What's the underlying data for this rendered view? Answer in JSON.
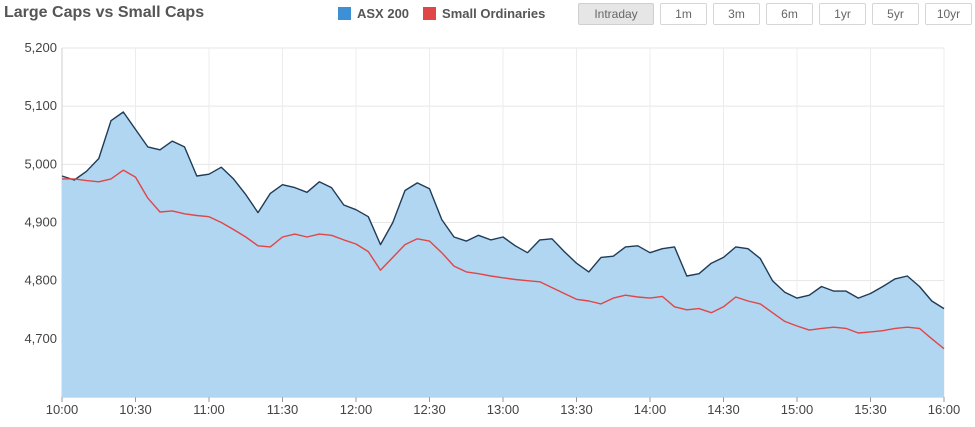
{
  "header": {
    "title": "Large Caps vs Small Caps",
    "legend": [
      {
        "label": "ASX 200",
        "color": "#3d8fd6"
      },
      {
        "label": "Small Ordinaries",
        "color": "#e04646"
      }
    ],
    "ranges": [
      "Intraday",
      "1m",
      "3m",
      "6m",
      "1yr",
      "5yr",
      "10yr"
    ],
    "active_range": "Intraday"
  },
  "chart_data": {
    "type": "area",
    "x_tick_labels": [
      "10:00",
      "10:30",
      "11:00",
      "11:30",
      "12:00",
      "12:30",
      "13:00",
      "13:30",
      "14:00",
      "14:30",
      "15:00",
      "15:30",
      "16:00"
    ],
    "y_tick_labels": [
      "5,200",
      "5,100",
      "5,000",
      "4,900",
      "4,800",
      "4,700"
    ],
    "ylim": [
      4600,
      5200
    ],
    "x_range": [
      "10:00",
      "16:00"
    ],
    "grid": true,
    "legend_position": "top",
    "series": [
      {
        "name": "ASX 200",
        "color": "#1f3b57",
        "fill": "#b1d6f1",
        "points": [
          [
            "10:00",
            4980
          ],
          [
            "10:05",
            4973
          ],
          [
            "10:10",
            4988
          ],
          [
            "10:15",
            5010
          ],
          [
            "10:20",
            5075
          ],
          [
            "10:25",
            5090
          ],
          [
            "10:30",
            5060
          ],
          [
            "10:35",
            5030
          ],
          [
            "10:40",
            5025
          ],
          [
            "10:45",
            5040
          ],
          [
            "10:50",
            5030
          ],
          [
            "10:55",
            4980
          ],
          [
            "11:00",
            4983
          ],
          [
            "11:05",
            4995
          ],
          [
            "11:10",
            4975
          ],
          [
            "11:15",
            4948
          ],
          [
            "11:20",
            4917
          ],
          [
            "11:25",
            4950
          ],
          [
            "11:30",
            4965
          ],
          [
            "11:35",
            4960
          ],
          [
            "11:40",
            4952
          ],
          [
            "11:45",
            4970
          ],
          [
            "11:50",
            4960
          ],
          [
            "11:55",
            4930
          ],
          [
            "12:00",
            4922
          ],
          [
            "12:05",
            4910
          ],
          [
            "12:10",
            4862
          ],
          [
            "12:15",
            4900
          ],
          [
            "12:20",
            4955
          ],
          [
            "12:25",
            4968
          ],
          [
            "12:30",
            4958
          ],
          [
            "12:35",
            4905
          ],
          [
            "12:40",
            4875
          ],
          [
            "12:45",
            4868
          ],
          [
            "12:50",
            4878
          ],
          [
            "12:55",
            4870
          ],
          [
            "13:00",
            4875
          ],
          [
            "13:05",
            4860
          ],
          [
            "13:10",
            4848
          ],
          [
            "13:15",
            4870
          ],
          [
            "13:20",
            4872
          ],
          [
            "13:25",
            4850
          ],
          [
            "13:30",
            4830
          ],
          [
            "13:35",
            4815
          ],
          [
            "13:40",
            4840
          ],
          [
            "13:45",
            4842
          ],
          [
            "13:50",
            4858
          ],
          [
            "13:55",
            4860
          ],
          [
            "14:00",
            4848
          ],
          [
            "14:05",
            4855
          ],
          [
            "14:10",
            4858
          ],
          [
            "14:15",
            4808
          ],
          [
            "14:20",
            4812
          ],
          [
            "14:25",
            4830
          ],
          [
            "14:30",
            4840
          ],
          [
            "14:35",
            4858
          ],
          [
            "14:40",
            4855
          ],
          [
            "14:45",
            4838
          ],
          [
            "14:50",
            4800
          ],
          [
            "14:55",
            4780
          ],
          [
            "15:00",
            4770
          ],
          [
            "15:05",
            4775
          ],
          [
            "15:10",
            4790
          ],
          [
            "15:15",
            4782
          ],
          [
            "15:20",
            4782
          ],
          [
            "15:25",
            4770
          ],
          [
            "15:30",
            4778
          ],
          [
            "15:35",
            4790
          ],
          [
            "15:40",
            4803
          ],
          [
            "15:45",
            4808
          ],
          [
            "15:50",
            4790
          ],
          [
            "15:55",
            4765
          ],
          [
            "16:00",
            4752
          ]
        ]
      },
      {
        "name": "Small Ordinaries",
        "color": "#e04646",
        "points": [
          [
            "10:00",
            4975
          ],
          [
            "10:05",
            4975
          ],
          [
            "10:10",
            4972
          ],
          [
            "10:15",
            4970
          ],
          [
            "10:20",
            4975
          ],
          [
            "10:25",
            4990
          ],
          [
            "10:30",
            4978
          ],
          [
            "10:35",
            4942
          ],
          [
            "10:40",
            4918
          ],
          [
            "10:45",
            4920
          ],
          [
            "10:50",
            4915
          ],
          [
            "10:55",
            4912
          ],
          [
            "11:00",
            4910
          ],
          [
            "11:05",
            4900
          ],
          [
            "11:10",
            4888
          ],
          [
            "11:15",
            4875
          ],
          [
            "11:20",
            4860
          ],
          [
            "11:25",
            4858
          ],
          [
            "11:30",
            4875
          ],
          [
            "11:35",
            4880
          ],
          [
            "11:40",
            4875
          ],
          [
            "11:45",
            4880
          ],
          [
            "11:50",
            4878
          ],
          [
            "11:55",
            4870
          ],
          [
            "12:00",
            4863
          ],
          [
            "12:05",
            4850
          ],
          [
            "12:10",
            4818
          ],
          [
            "12:15",
            4840
          ],
          [
            "12:20",
            4862
          ],
          [
            "12:25",
            4872
          ],
          [
            "12:30",
            4868
          ],
          [
            "12:35",
            4848
          ],
          [
            "12:40",
            4825
          ],
          [
            "12:45",
            4815
          ],
          [
            "12:50",
            4812
          ],
          [
            "12:55",
            4808
          ],
          [
            "13:00",
            4805
          ],
          [
            "13:05",
            4802
          ],
          [
            "13:10",
            4800
          ],
          [
            "13:15",
            4798
          ],
          [
            "13:20",
            4788
          ],
          [
            "13:25",
            4778
          ],
          [
            "13:30",
            4768
          ],
          [
            "13:35",
            4765
          ],
          [
            "13:40",
            4760
          ],
          [
            "13:45",
            4770
          ],
          [
            "13:50",
            4775
          ],
          [
            "13:55",
            4772
          ],
          [
            "14:00",
            4770
          ],
          [
            "14:05",
            4773
          ],
          [
            "14:10",
            4755
          ],
          [
            "14:15",
            4750
          ],
          [
            "14:20",
            4752
          ],
          [
            "14:25",
            4745
          ],
          [
            "14:30",
            4755
          ],
          [
            "14:35",
            4772
          ],
          [
            "14:40",
            4765
          ],
          [
            "14:45",
            4760
          ],
          [
            "14:50",
            4745
          ],
          [
            "14:55",
            4730
          ],
          [
            "15:00",
            4722
          ],
          [
            "15:05",
            4715
          ],
          [
            "15:10",
            4718
          ],
          [
            "15:15",
            4720
          ],
          [
            "15:20",
            4718
          ],
          [
            "15:25",
            4710
          ],
          [
            "15:30",
            4712
          ],
          [
            "15:35",
            4714
          ],
          [
            "15:40",
            4718
          ],
          [
            "15:45",
            4720
          ],
          [
            "15:50",
            4718
          ],
          [
            "15:55",
            4700
          ],
          [
            "16:00",
            4683
          ]
        ]
      }
    ]
  }
}
